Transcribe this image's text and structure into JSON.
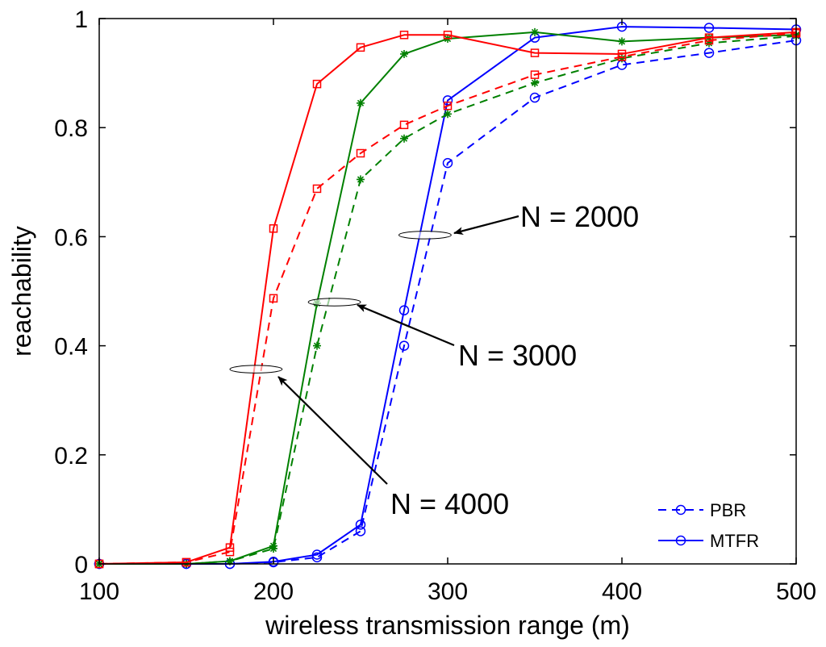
{
  "chart_data": {
    "type": "line",
    "title": "",
    "xlabel": "wireless transmission range (m)",
    "ylabel": "reachability",
    "xlim": [
      100,
      500
    ],
    "ylim": [
      0,
      1
    ],
    "grid": false,
    "x_ticks": [
      100,
      200,
      300,
      400,
      500
    ],
    "x_tick_labels": [
      "100",
      "200",
      "300",
      "400",
      "500"
    ],
    "y_ticks": [
      0,
      0.2,
      0.4,
      0.6,
      0.8,
      1
    ],
    "y_tick_labels": [
      "0",
      "0.2",
      "0.4",
      "0.6",
      "0.8",
      "1"
    ],
    "legend": {
      "position": "bottom-right",
      "entries": [
        {
          "label": "PBR",
          "style": "dashed",
          "marker": "circle",
          "color": "#0000ff"
        },
        {
          "label": "MTFR",
          "style": "solid",
          "marker": "circle",
          "color": "#0000ff"
        }
      ]
    },
    "series": [
      {
        "name": "PBR, N = 2000",
        "protocol": "PBR",
        "n": "2000",
        "color": "#0000ff",
        "style": "dashed",
        "marker": "circle",
        "x": [
          100,
          150,
          175,
          200,
          225,
          250,
          275,
          300,
          350,
          400,
          450,
          500
        ],
        "y": [
          0,
          0,
          0,
          0.003,
          0.012,
          0.06,
          0.4,
          0.735,
          0.855,
          0.915,
          0.937,
          0.96
        ]
      },
      {
        "name": "MTFR, N = 2000",
        "protocol": "MTFR",
        "n": "2000",
        "color": "#0000ff",
        "style": "solid",
        "marker": "circle",
        "x": [
          100,
          150,
          175,
          200,
          225,
          250,
          275,
          300,
          350,
          400,
          450,
          500
        ],
        "y": [
          0,
          0,
          0,
          0.004,
          0.017,
          0.072,
          0.465,
          0.85,
          0.965,
          0.985,
          0.983,
          0.98
        ]
      },
      {
        "name": "PBR, N = 3000",
        "protocol": "PBR",
        "n": "3000",
        "color": "#008000",
        "style": "dashed",
        "marker": "star",
        "x": [
          100,
          150,
          175,
          200,
          225,
          250,
          275,
          300,
          350,
          400,
          450,
          500
        ],
        "y": [
          0,
          0,
          0.005,
          0.028,
          0.4,
          0.705,
          0.78,
          0.825,
          0.882,
          0.927,
          0.955,
          0.968
        ]
      },
      {
        "name": "MTFR, N = 3000",
        "protocol": "MTFR",
        "n": "3000",
        "color": "#008000",
        "style": "solid",
        "marker": "star",
        "x": [
          100,
          150,
          175,
          200,
          225,
          250,
          275,
          300,
          350,
          400,
          450,
          500
        ],
        "y": [
          0,
          0,
          0.005,
          0.033,
          0.478,
          0.845,
          0.935,
          0.963,
          0.975,
          0.958,
          0.965,
          0.97
        ]
      },
      {
        "name": "PBR, N = 4000",
        "protocol": "PBR",
        "n": "4000",
        "color": "#ff0000",
        "style": "dashed",
        "marker": "square",
        "x": [
          100,
          150,
          175,
          200,
          225,
          250,
          275,
          300,
          350,
          400,
          450,
          500
        ],
        "y": [
          0,
          0.003,
          0.022,
          0.487,
          0.688,
          0.753,
          0.805,
          0.84,
          0.897,
          0.93,
          0.96,
          0.973
        ]
      },
      {
        "name": "MTFR, N = 4000",
        "protocol": "MTFR",
        "n": "4000",
        "color": "#ff0000",
        "style": "solid",
        "marker": "square",
        "x": [
          100,
          150,
          175,
          200,
          225,
          250,
          275,
          300,
          350,
          400,
          450,
          500
        ],
        "y": [
          0,
          0.003,
          0.03,
          0.615,
          0.88,
          0.947,
          0.97,
          0.97,
          0.937,
          0.935,
          0.965,
          0.975
        ]
      }
    ],
    "annotations": [
      {
        "text": "N = 2000",
        "ellipse_x": 287,
        "ellipse_y": 0.603,
        "ellipse_rx": 15,
        "ellipse_ry": 0.007
      },
      {
        "text": "N = 3000",
        "ellipse_x": 235,
        "ellipse_y": 0.48,
        "ellipse_rx": 15,
        "ellipse_ry": 0.007
      },
      {
        "text": "N = 4000",
        "ellipse_x": 190,
        "ellipse_y": 0.357,
        "ellipse_rx": 15,
        "ellipse_ry": 0.007
      }
    ]
  }
}
